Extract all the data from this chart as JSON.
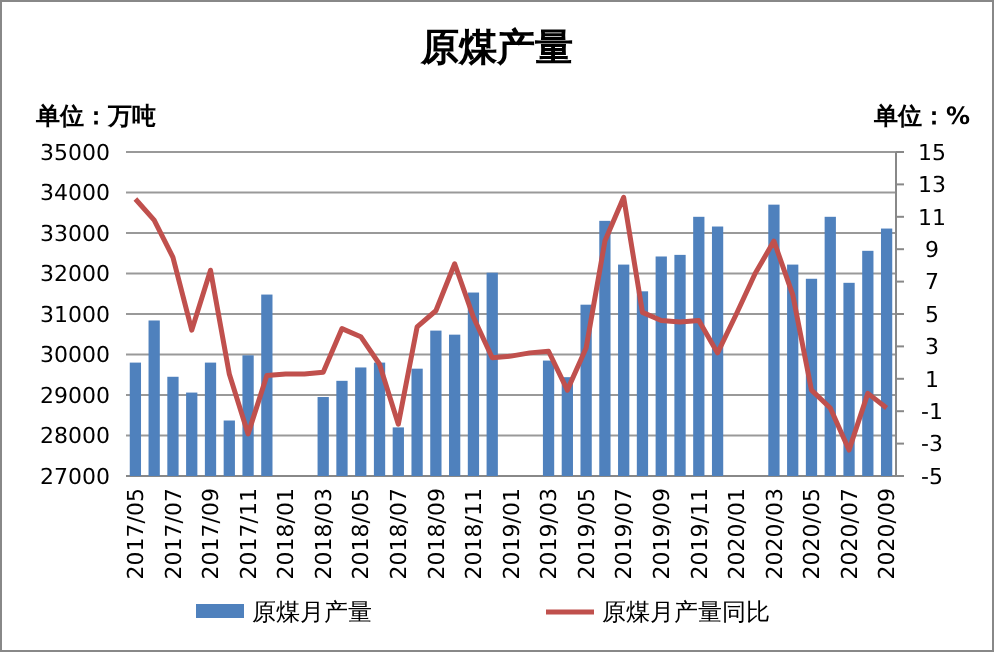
{
  "chart_data": {
    "type": "bar",
    "title": "原煤产量",
    "ylabel": "单位：万吨",
    "y2label": "单位：%",
    "categories": [
      "2017/05",
      null,
      "2017/07",
      null,
      "2017/09",
      null,
      "2017/11",
      null,
      "2018/01",
      null,
      "2018/03",
      null,
      "2018/05",
      null,
      "2018/07",
      null,
      "2018/09",
      null,
      "2018/11",
      null,
      "2019/01",
      null,
      "2019/03",
      null,
      "2019/05",
      null,
      "2019/07",
      null,
      "2019/09",
      null,
      "2019/11",
      null,
      "2020/01",
      null,
      "2020/03",
      null,
      "2020/05",
      null,
      "2020/07",
      null,
      "2020/09"
    ],
    "series": [
      {
        "name": "原煤月产量",
        "color": "#4f81bd",
        "values": [
          29800,
          30840,
          29450,
          29060,
          29800,
          28370,
          29980,
          31480,
          null,
          null,
          28950,
          29350,
          29680,
          29800,
          28200,
          29650,
          30590,
          30490,
          31530,
          32020,
          null,
          null,
          29850,
          29440,
          31230,
          33300,
          32220,
          31560,
          32420,
          32460,
          33400,
          33160,
          null,
          null,
          33700,
          32220,
          31870,
          33400,
          31770,
          32560,
          33110
        ]
      },
      {
        "name": "原煤月产量同比",
        "type": "line",
        "axis": "y2",
        "color": "#c0504d",
        "values": [
          12.1,
          10.8,
          8.5,
          4.0,
          7.7,
          1.3,
          -2.4,
          1.2,
          1.3,
          1.3,
          1.4,
          4.1,
          3.6,
          1.9,
          -1.8,
          4.2,
          5.2,
          8.1,
          4.8,
          2.3,
          2.4,
          2.6,
          2.7,
          0.3,
          2.9,
          9.5,
          12.2,
          5.1,
          4.6,
          4.5,
          4.6,
          2.6,
          5.0,
          7.5,
          9.5,
          6.2,
          0.3,
          -0.8,
          -3.4,
          0.1,
          -0.8
        ]
      }
    ],
    "ylim": [
      27000,
      35000
    ],
    "yticks": [
      27000,
      28000,
      29000,
      30000,
      31000,
      32000,
      33000,
      34000,
      35000
    ],
    "y2lim": [
      -5,
      15
    ],
    "y2ticks": [
      -5,
      -3,
      -1,
      1,
      3,
      5,
      7,
      9,
      11,
      13,
      15
    ],
    "grid": "y",
    "legend": "bottom",
    "line_style": "solid",
    "marker": "none"
  }
}
